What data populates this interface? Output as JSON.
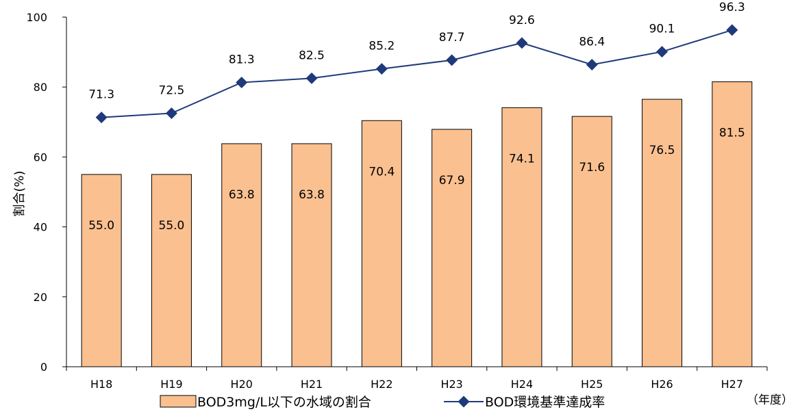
{
  "chart_data": {
    "type": "bar",
    "categories": [
      "H18",
      "H19",
      "H20",
      "H21",
      "H22",
      "H23",
      "H24",
      "H25",
      "H26",
      "H27"
    ],
    "series": [
      {
        "name": "BOD3mg/L以下の水域の割合",
        "type": "bar",
        "color": "#FAC090",
        "stroke": "#000000",
        "values": [
          55.0,
          55.0,
          63.8,
          63.8,
          70.4,
          67.9,
          74.1,
          71.6,
          76.5,
          81.5
        ],
        "labels": [
          "55.0",
          "55.0",
          "63.8",
          "63.8",
          "70.4",
          "67.9",
          "74.1",
          "71.6",
          "76.5",
          "81.5"
        ]
      },
      {
        "name": "BOD環境基準達成率",
        "type": "line",
        "color": "#1F3A7A",
        "marker": "diamond",
        "values": [
          71.3,
          72.5,
          81.3,
          82.5,
          85.2,
          87.7,
          92.6,
          86.4,
          90.1,
          96.3
        ],
        "labels": [
          "71.3",
          "72.5",
          "81.3",
          "82.5",
          "85.2",
          "87.7",
          "92.6",
          "86.4",
          "90.1",
          "96.3"
        ]
      }
    ],
    "ylabel": "割合(%)",
    "xunit": "（年度）",
    "ylim": [
      0,
      100
    ],
    "yticks": [
      0,
      20,
      40,
      60,
      80,
      100
    ],
    "grid": false,
    "legend_position": "bottom"
  }
}
